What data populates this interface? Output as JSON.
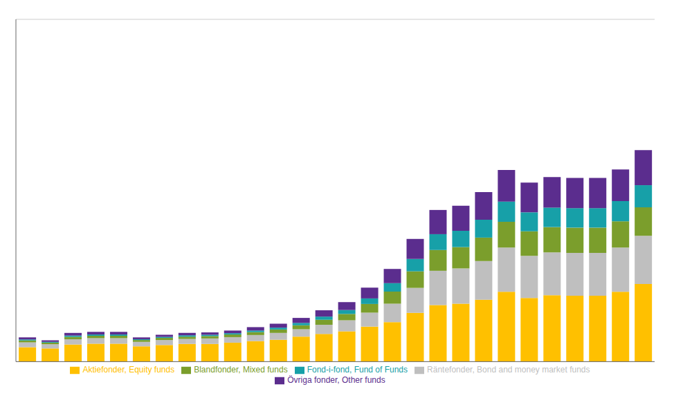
{
  "chart_data": {
    "type": "bar",
    "stacked": true,
    "categories": [
      null,
      null,
      null,
      null,
      null,
      null,
      null,
      null,
      null,
      null,
      null,
      null,
      null,
      null,
      null,
      null,
      null,
      null,
      null,
      null,
      null,
      null,
      null,
      null,
      null,
      null,
      null,
      null
    ],
    "series": [
      {
        "name": "Aktiefonder, Equity funds",
        "color": "#FFC000",
        "values": [
          55,
          50,
          65,
          68,
          68,
          58,
          63,
          67,
          67,
          72,
          78,
          83,
          95,
          105,
          115,
          133,
          150,
          185,
          215,
          220,
          235,
          265,
          242,
          252,
          250,
          250,
          265,
          295
        ]
      },
      {
        "name": "Räntefonder, Bond and money market funds",
        "color": "#BFBFBF",
        "values": [
          18,
          16,
          20,
          21,
          21,
          17,
          19,
          19,
          21,
          21,
          23,
          26,
          28,
          35,
          42,
          53,
          70,
          95,
          130,
          134,
          147,
          168,
          160,
          163,
          163,
          163,
          168,
          183
        ]
      },
      {
        "name": "Blandfonder, Mixed funds",
        "color": "#7B9E2C",
        "values": [
          7,
          6,
          9,
          9,
          9,
          7,
          8,
          9,
          9,
          10,
          11,
          13,
          15,
          19,
          24,
          33,
          46,
          63,
          79,
          81,
          89,
          98,
          93,
          96,
          96,
          96,
          100,
          108
        ]
      },
      {
        "name": "Fond-i-fond, Fund of Funds",
        "color": "#17A0A8",
        "values": [
          4,
          3,
          5,
          5,
          5,
          3,
          4,
          5,
          5,
          5,
          6,
          7,
          9,
          12,
          15,
          21,
          32,
          47,
          60,
          62,
          68,
          77,
          72,
          74,
          74,
          74,
          77,
          84
        ]
      },
      {
        "name": "Övriga fonder, Other funds",
        "color": "#5B2D8E",
        "values": [
          8,
          6,
          10,
          10,
          10,
          7,
          8,
          9,
          9,
          10,
          13,
          15,
          19,
          24,
          30,
          41,
          54,
          76,
          92,
          95,
          105,
          120,
          113,
          116,
          115,
          115,
          120,
          133
        ]
      }
    ],
    "ylim": [
      0,
      1300
    ],
    "yticks": [
      0,
      162.5,
      325,
      487.5,
      650,
      812.5,
      975,
      1137.5,
      1300
    ],
    "grid": true,
    "legend": "bottom",
    "tick_labels": false
  }
}
